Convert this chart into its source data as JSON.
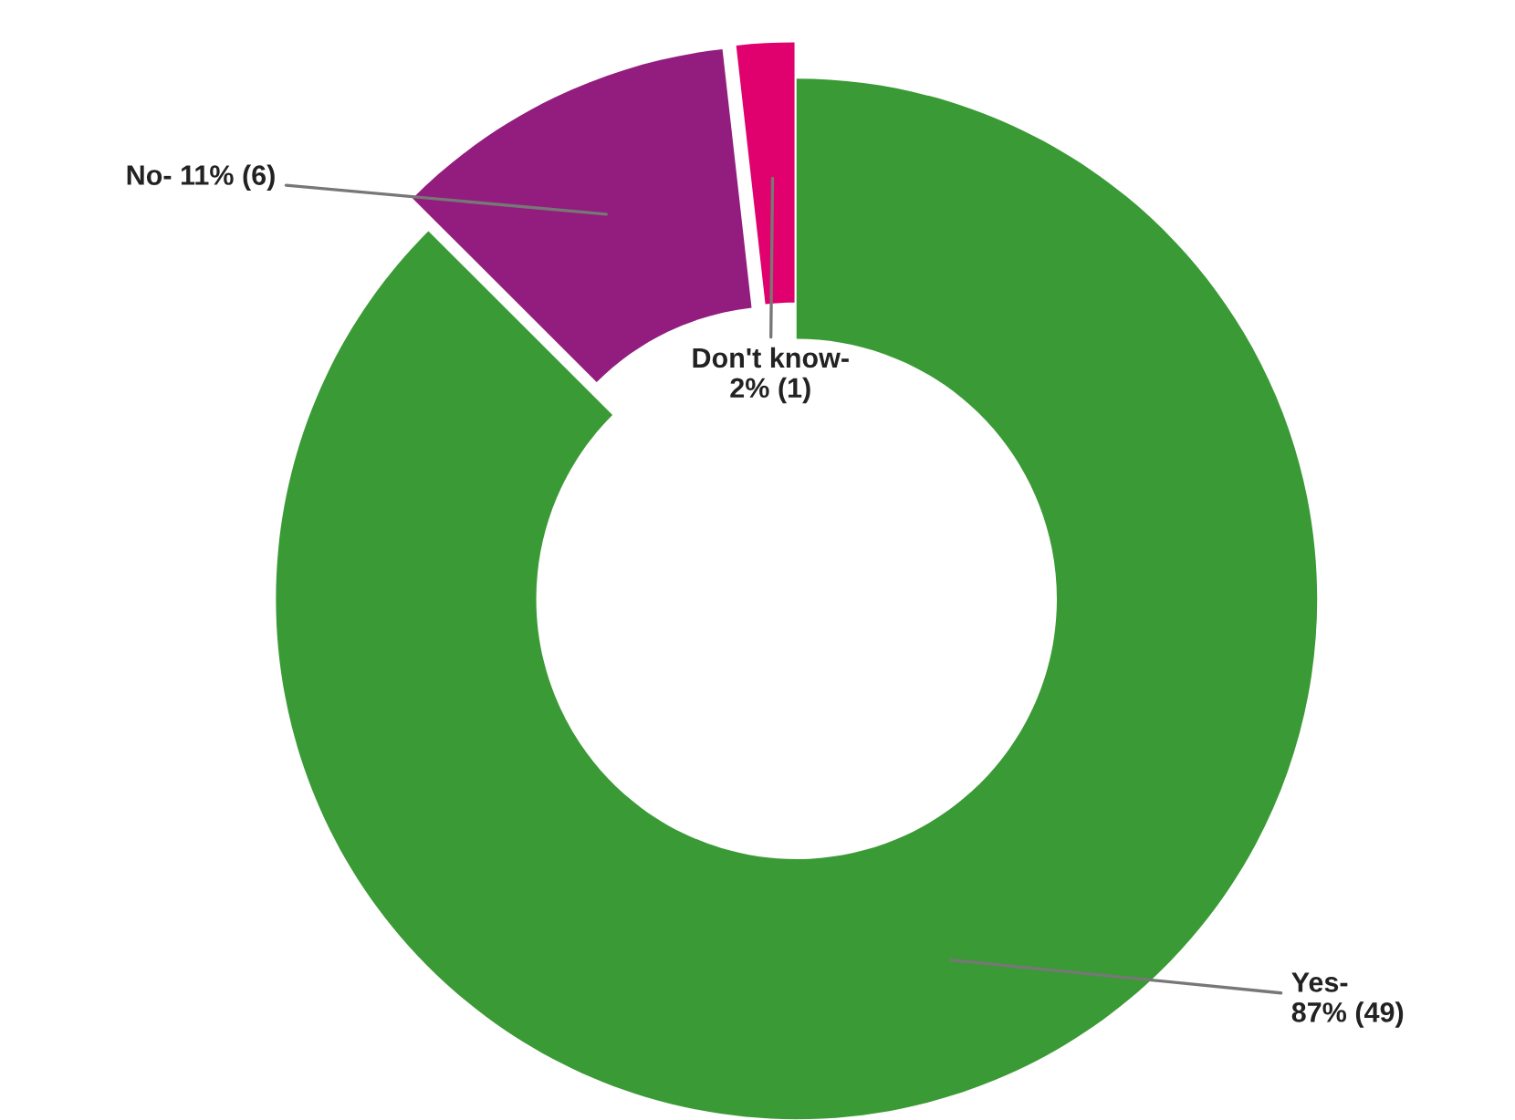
{
  "chart_data": {
    "type": "donut",
    "categories": [
      "Yes-",
      "No-",
      "Don't know-"
    ],
    "values": [
      49,
      6,
      1
    ],
    "value_labels": [
      "87% (49)",
      "11% (6)",
      "2% (1)"
    ],
    "colors": [
      "#3a9a35",
      "#921d7e",
      "#e0006e"
    ],
    "legend": false
  }
}
